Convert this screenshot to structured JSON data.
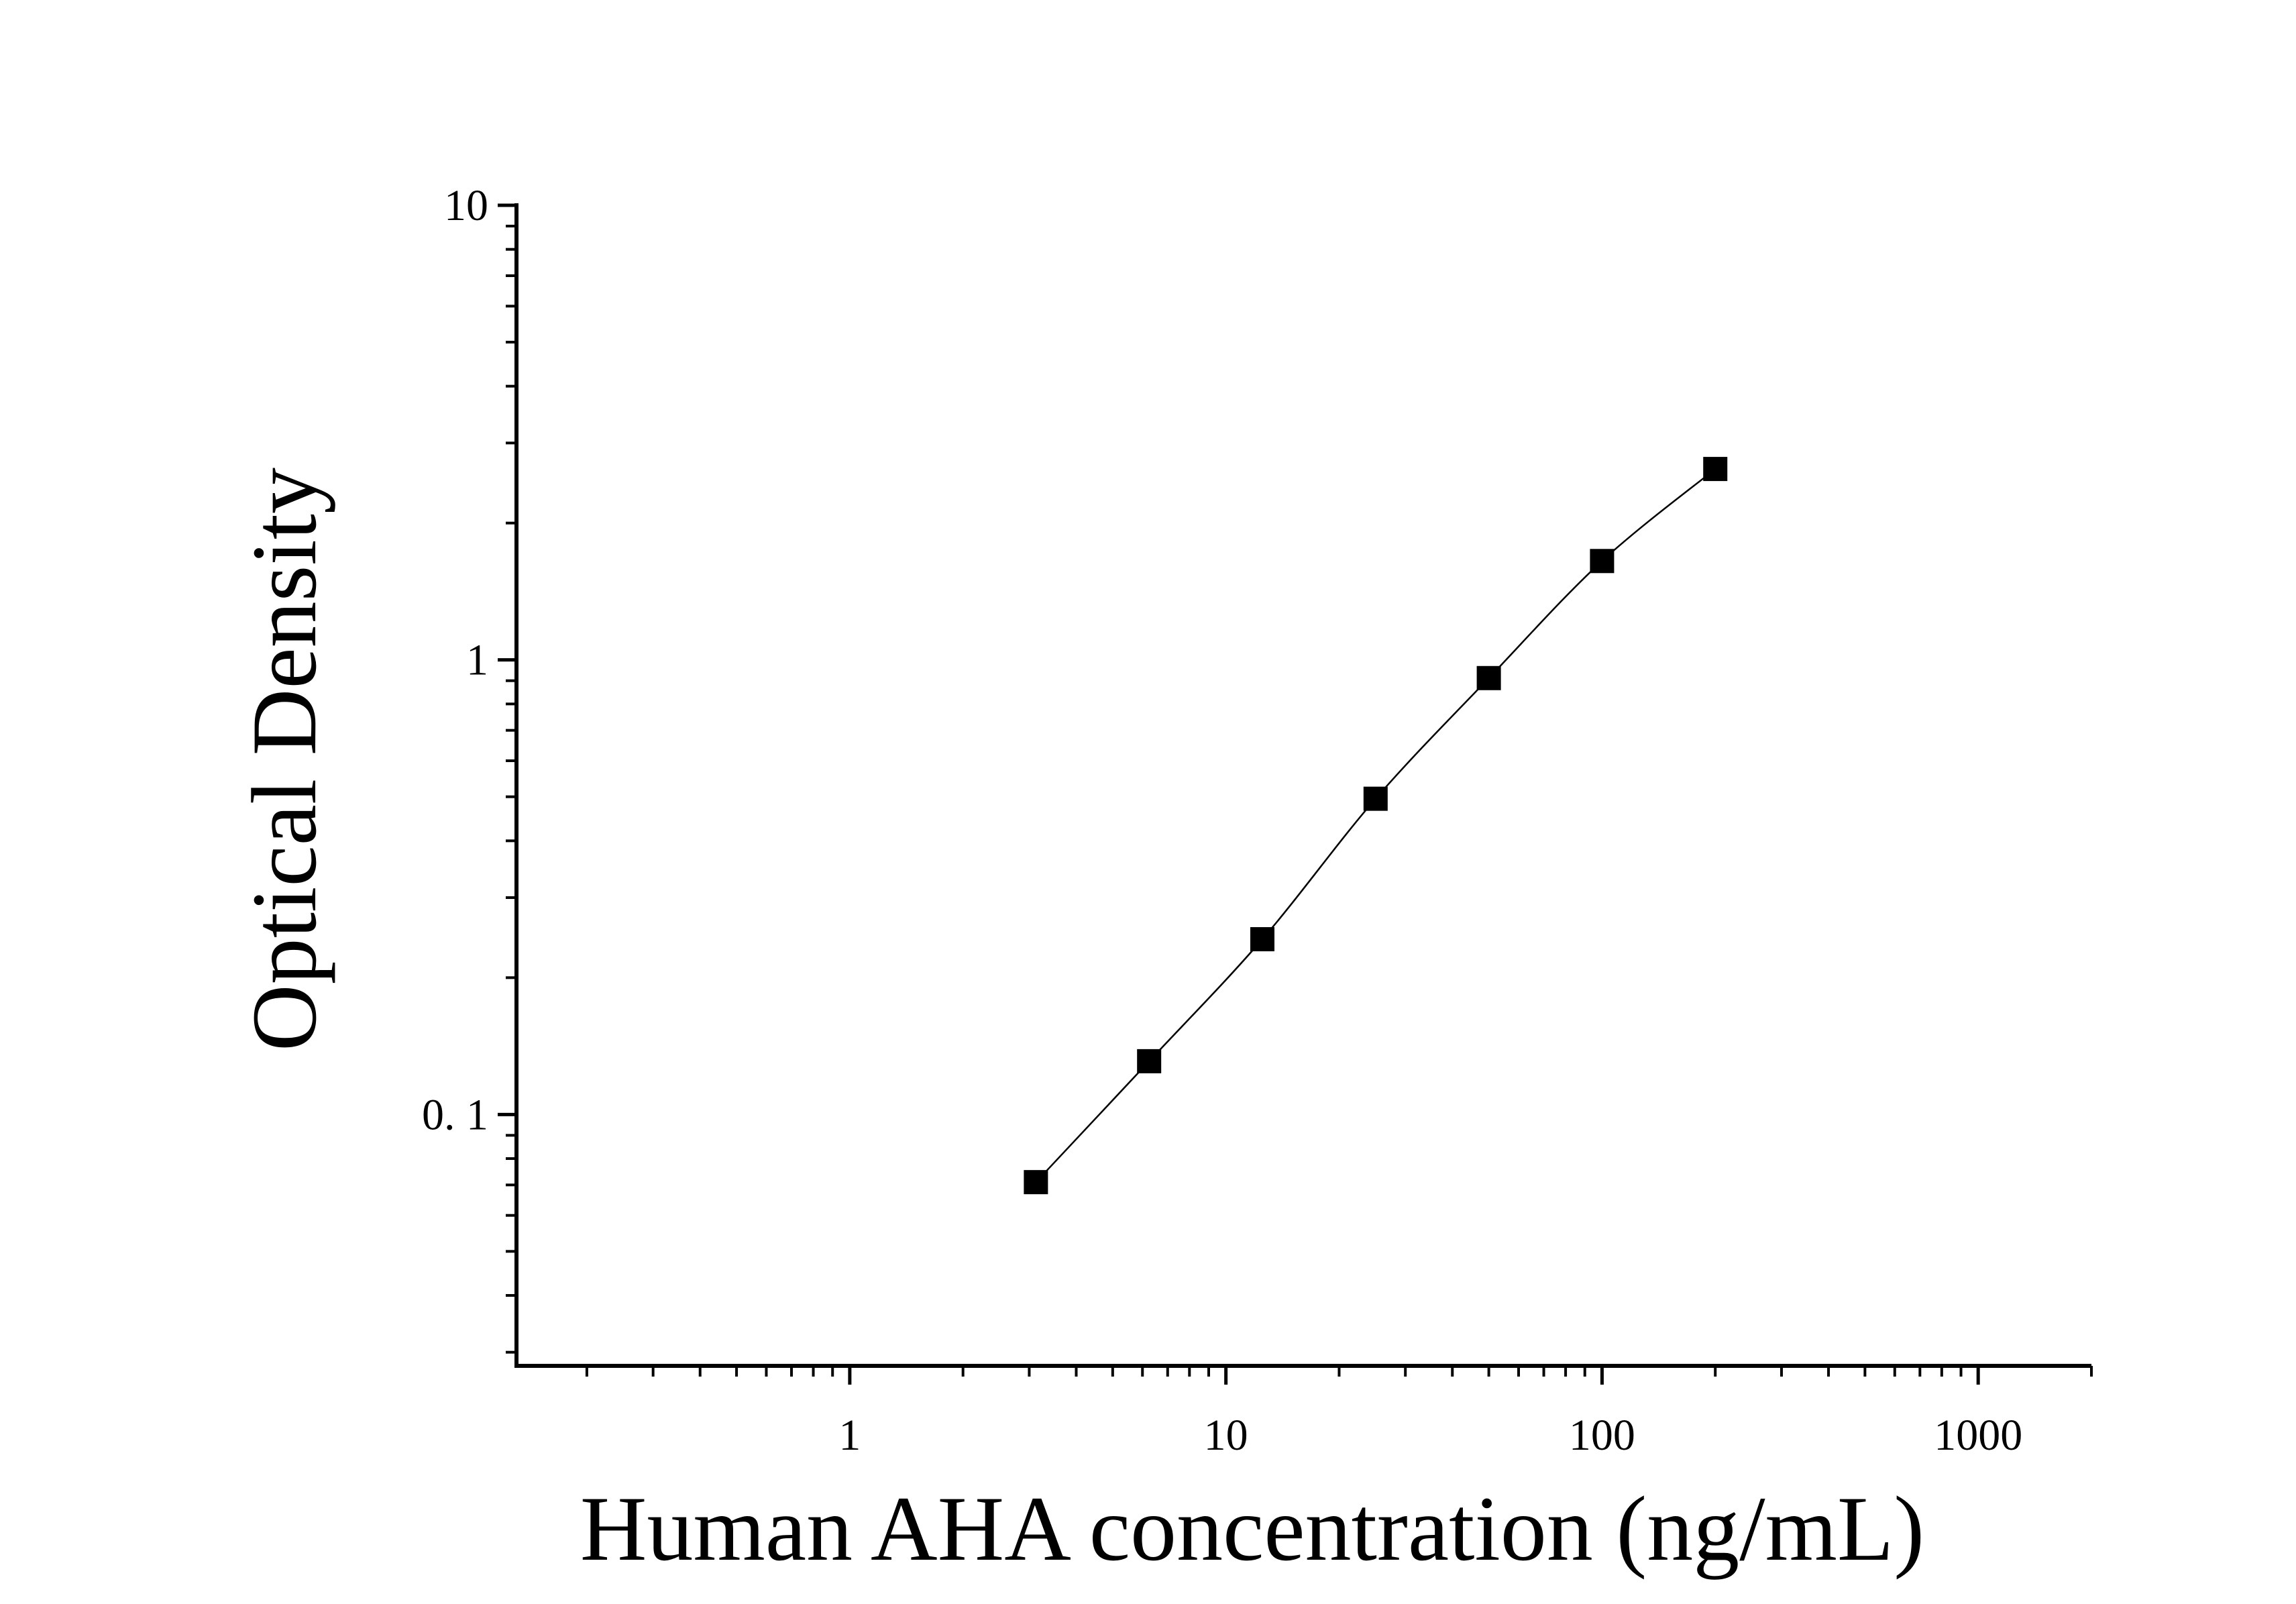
{
  "chart_data": {
    "type": "scatter",
    "title": "",
    "xlabel": "Human AHA concentration (ng/mL)",
    "ylabel": "Optical Density",
    "x_scale": "log",
    "y_scale": "log",
    "xlim": [
      0.13,
      2000
    ],
    "ylim": [
      0.028,
      10
    ],
    "x_ticks": [
      {
        "value": 1,
        "label": "1"
      },
      {
        "value": 10,
        "label": "10"
      },
      {
        "value": 100,
        "label": "100"
      },
      {
        "value": 1000,
        "label": "1000"
      }
    ],
    "y_ticks": [
      {
        "value": 0.1,
        "label": "0. 1"
      },
      {
        "value": 1,
        "label": "1"
      },
      {
        "value": 10,
        "label": "10"
      }
    ],
    "grid": false,
    "legend": "none",
    "marker": "filled-square",
    "fit_line": "smooth curve through points",
    "color": "#000000",
    "series": [
      {
        "x": [
          3.125,
          6.25,
          12.5,
          25,
          50,
          100,
          200
        ],
        "y": [
          0.071,
          0.131,
          0.243,
          0.495,
          0.912,
          1.65,
          2.63
        ]
      }
    ]
  }
}
